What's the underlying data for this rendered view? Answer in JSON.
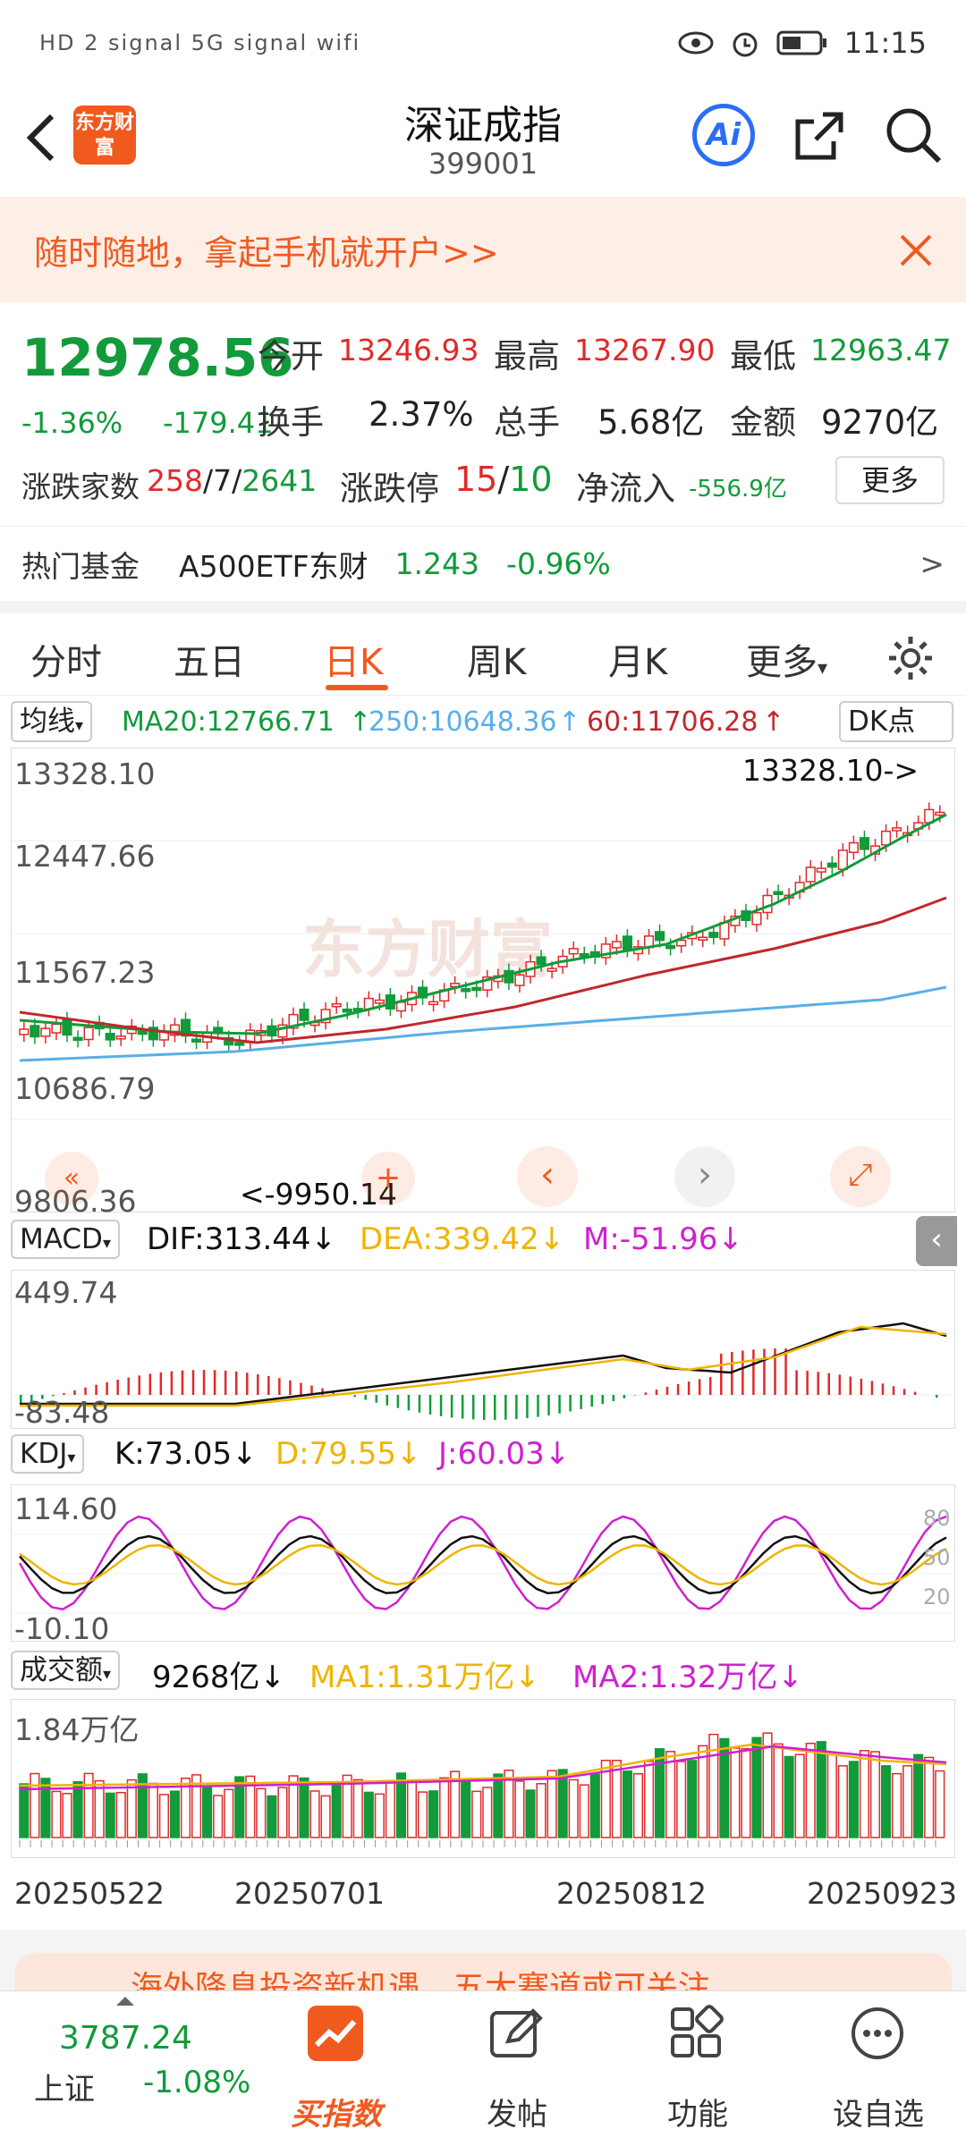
{
  "status": {
    "left_icons": "HD 2 signal 5G signal wifi",
    "time": "11:15"
  },
  "header": {
    "logo_text": "东方财富",
    "title": "深证成指",
    "code": "399001",
    "ai_label": "Ai"
  },
  "banner": {
    "text": "随时随地，拿起手机就开户>>"
  },
  "quote": {
    "price": "12978.56",
    "change_pct": "-1.36%",
    "change": "-179.41",
    "open_label": "今开",
    "open": "13246.93",
    "high_label": "最高",
    "high": "13267.90",
    "low_label": "最低",
    "low": "12963.47",
    "turnover_label": "换手",
    "turnover": "2.37%",
    "volume_label": "总手",
    "volume": "5.68亿",
    "amount_label": "金额",
    "amount": "9270亿",
    "breadth_label": "涨跌家数",
    "breadth_up": "258",
    "breadth_sep1": "/",
    "breadth_flat": "7",
    "breadth_sep2": "/",
    "breadth_down": "2641",
    "limit_label": "涨跌停",
    "limit_up": "15",
    "limit_sep": "/",
    "limit_down": "10",
    "netflow_label": "净流入",
    "netflow": "-556.9亿",
    "more_label": "更多"
  },
  "fund": {
    "label": "热门基金",
    "name": "A500ETF东财",
    "price": "1.243",
    "change": "-0.96%",
    "arrow": ">"
  },
  "tabs": [
    "分时",
    "五日",
    "日K",
    "周K",
    "月K",
    "更多"
  ],
  "active_tab": "日K",
  "main_chart": {
    "ma_select": "均线",
    "ma20": "MA20:12766.71",
    "ma250": "250:10648.36",
    "ma60": "60:11706.28",
    "dk_label": "DK点",
    "y_labels": [
      "13328.10",
      "12447.66",
      "11567.23",
      "10686.79",
      "9806.36"
    ],
    "high_note": "13328.10->",
    "low_note": "<-9950.14",
    "watermark": "东方财富"
  },
  "macd": {
    "select": "MACD",
    "dif": "DIF:313.44",
    "dea": "DEA:339.42",
    "m": "M:-51.96",
    "ymax": "449.74",
    "ymin": "-83.48"
  },
  "kdj": {
    "select": "KDJ",
    "k": "K:73.05",
    "d": "D:79.55",
    "j": "J:60.03",
    "ymax": "114.60",
    "ymin": "-10.10",
    "levels": [
      "80",
      "50",
      "20"
    ]
  },
  "volume": {
    "select": "成交额",
    "value": "9268亿",
    "ma1": "MA1:1.31万亿",
    "ma2": "MA2:1.32万亿",
    "ymax": "1.84万亿"
  },
  "dates": [
    "20250522",
    "20250701",
    "20250812",
    "20250923"
  ],
  "promo": {
    "text": "海外降息投资新机遇，五大赛道或可关注"
  },
  "bottom": {
    "index_price": "3787.24",
    "index_name": "上证",
    "index_change": "-1.08%",
    "buy_label": "买指数",
    "post_label": "发帖",
    "func_label": "功能",
    "watch_label": "设自选"
  },
  "colors": {
    "up": "#e02a2a",
    "down": "#119b3a",
    "accent": "#f05a1f",
    "ma20": "#119b3a",
    "ma250": "#5aaee8",
    "ma60": "#c0282d",
    "dea": "#f0b400",
    "m": "#d020d0"
  }
}
